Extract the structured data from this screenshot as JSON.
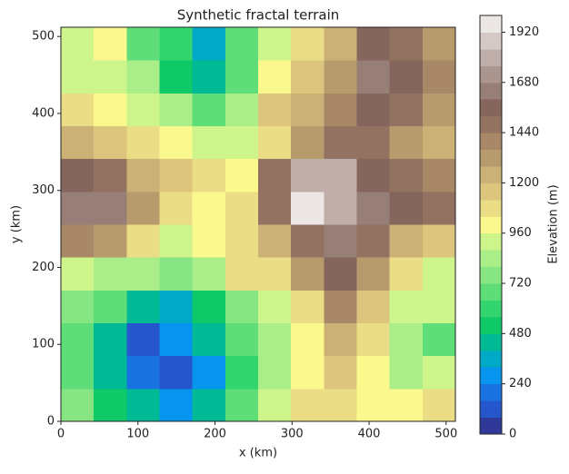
{
  "chart_data": {
    "type": "contour",
    "title": "Synthetic fractal terrain",
    "x_label": "x (km)",
    "y_label": "y (km)",
    "colorbar_label": "Elevation (m)",
    "xlim": [
      0,
      512
    ],
    "ylim": [
      0,
      512
    ],
    "xticks": [
      0,
      100,
      200,
      300,
      400,
      500
    ],
    "yticks": [
      0,
      100,
      200,
      300,
      400,
      500
    ],
    "x": [
      21,
      64,
      107,
      149,
      192,
      235,
      277,
      320,
      363,
      405,
      448,
      491
    ],
    "y": [
      21,
      64,
      107,
      149,
      192,
      235,
      277,
      320,
      363,
      405,
      448,
      491
    ],
    "z": [
      [
        750,
        550,
        400,
        300,
        450,
        700,
        950,
        1050,
        1100,
        1000,
        1000,
        1100
      ],
      [
        650,
        450,
        200,
        150,
        300,
        600,
        850,
        1000,
        1150,
        1000,
        850,
        950
      ],
      [
        700,
        400,
        150,
        250,
        400,
        650,
        850,
        1000,
        1250,
        1050,
        800,
        700
      ],
      [
        750,
        650,
        400,
        350,
        550,
        750,
        900,
        1050,
        1400,
        1150,
        950,
        900
      ],
      [
        900,
        850,
        800,
        750,
        850,
        1050,
        1100,
        1350,
        1550,
        1300,
        1100,
        950
      ],
      [
        1400,
        1300,
        1050,
        950,
        1000,
        1100,
        1200,
        1450,
        1600,
        1450,
        1250,
        1150
      ],
      [
        1650,
        1600,
        1350,
        1100,
        1000,
        1050,
        1500,
        1950,
        1800,
        1650,
        1550,
        1450
      ],
      [
        1550,
        1500,
        1250,
        1150,
        1050,
        1000,
        1450,
        1800,
        1800,
        1550,
        1450,
        1400
      ],
      [
        1250,
        1150,
        1050,
        1000,
        950,
        900,
        1100,
        1300,
        1450,
        1500,
        1350,
        1250
      ],
      [
        1100,
        1000,
        950,
        800,
        700,
        850,
        1150,
        1250,
        1400,
        1550,
        1450,
        1300
      ],
      [
        950,
        950,
        800,
        550,
        400,
        700,
        1000,
        1150,
        1350,
        1600,
        1550,
        1400
      ],
      [
        900,
        1000,
        700,
        600,
        350,
        650,
        900,
        1050,
        1250,
        1550,
        1500,
        1300
      ]
    ],
    "levels": [
      0,
      80,
      160,
      240,
      320,
      400,
      480,
      560,
      640,
      720,
      800,
      880,
      960,
      1040,
      1120,
      1200,
      1280,
      1360,
      1440,
      1520,
      1600,
      1680,
      1760,
      1840,
      1920,
      2000
    ],
    "colors": [
      "#30399a",
      "#2656cc",
      "#1873e0",
      "#0694ee",
      "#00a9c6",
      "#00b995",
      "#0fc868",
      "#33d56f",
      "#5fdd78",
      "#87e683",
      "#aaee89",
      "#cef58c",
      "#fbf98d",
      "#ebdc86",
      "#dcc67e",
      "#cbb175",
      "#b89b6c",
      "#a88866",
      "#937262",
      "#85665c",
      "#977e77",
      "#aa958f",
      "#bfaea9",
      "#d5c9c6",
      "#ece6e4"
    ],
    "colorbar_ticks": [
      0,
      240,
      480,
      720,
      960,
      1200,
      1440,
      1680,
      1920
    ]
  }
}
